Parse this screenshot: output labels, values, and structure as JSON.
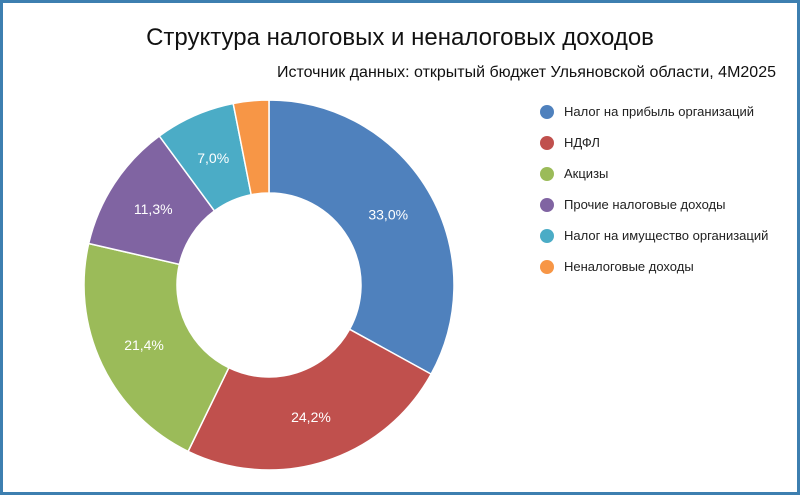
{
  "chart_data": {
    "type": "pie",
    "style": "donut",
    "title": "Структура налоговых и неналоговых доходов",
    "subtitle": "Источник данных: открытый бюджет Ульяновской области, 4М2025",
    "legend_position": "right",
    "slices": [
      {
        "name": "Налог на прибыль организаций",
        "value": 33.0,
        "label": "33,0%",
        "color": "#4f81bd"
      },
      {
        "name": "НДФЛ",
        "value": 24.2,
        "label": "24,2%",
        "color": "#c0504d"
      },
      {
        "name": "Акцизы",
        "value": 21.4,
        "label": "21,4%",
        "color": "#9bbb59"
      },
      {
        "name": "Прочие налоговые доходы",
        "value": 11.3,
        "label": "11,3%",
        "color": "#8064a2"
      },
      {
        "name": "Налог на имущество организаций",
        "value": 7.0,
        "label": "7,0%",
        "color": "#4bacc6"
      },
      {
        "name": "Неналоговые доходы",
        "value": 3.1,
        "label": "",
        "color": "#f79646"
      }
    ]
  }
}
